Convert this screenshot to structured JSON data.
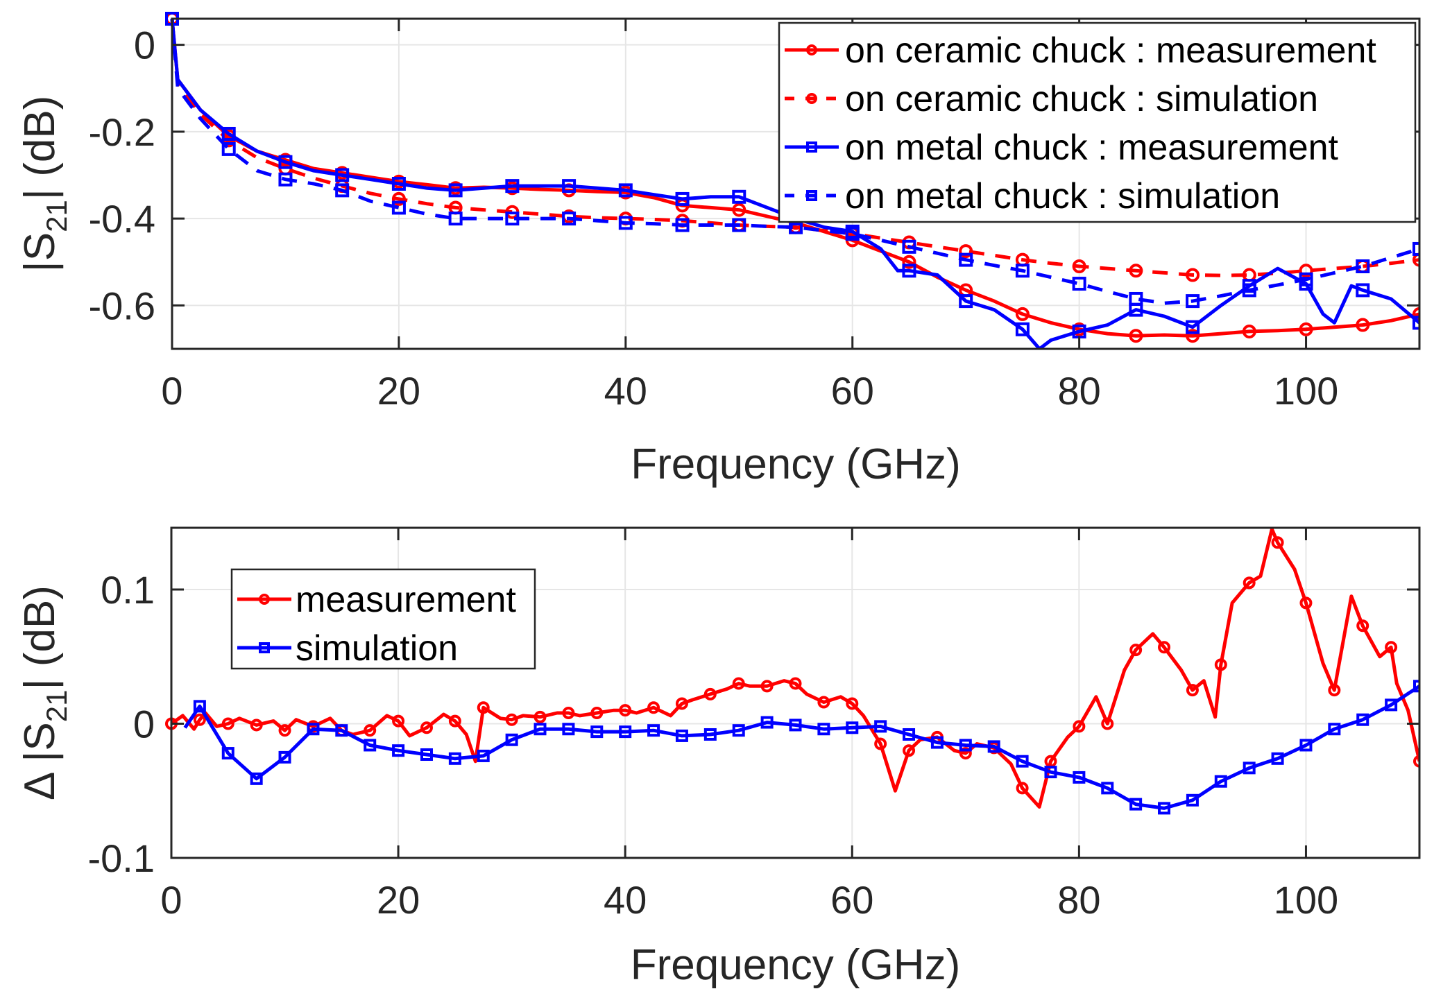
{
  "figure": {
    "description": "Two stacked MATLAB-style plots of S21 magnitude vs frequency"
  },
  "chart_data": [
    {
      "type": "line",
      "id": "top",
      "title": "",
      "xlabel": "Frequency (GHz)",
      "ylabel": "|S21| (dB)",
      "ylabel_parts": {
        "pre": "|S",
        "sub": "21",
        "post": "| (dB)"
      },
      "xlim": [
        0,
        110
      ],
      "ylim": [
        -0.7,
        0.06
      ],
      "xticks": [
        0,
        20,
        40,
        60,
        80,
        100
      ],
      "xtick_labels": [
        "0",
        "20",
        "40",
        "60",
        "80",
        "100"
      ],
      "yticks": [
        0,
        -0.2,
        -0.4,
        -0.6
      ],
      "ytick_labels": [
        "0",
        "-0.2",
        "-0.4",
        "-0.6"
      ],
      "grid": true,
      "legend_position": "top-right",
      "series": [
        {
          "name": "on ceramic chuck : measurement",
          "color": "#ff0000",
          "line_style": "solid",
          "marker": "circle",
          "marker_every_ghz": 5,
          "x": [
            0,
            0.5,
            2.5,
            5,
            7.5,
            10,
            12.5,
            15,
            17.5,
            20,
            22.5,
            25,
            27.5,
            30,
            32.5,
            35,
            37.5,
            40,
            42.5,
            45,
            47.5,
            50,
            52.5,
            55,
            57.5,
            60,
            62.5,
            65,
            67.5,
            70,
            72.5,
            75,
            77.5,
            80,
            82.5,
            85,
            87.5,
            90,
            92.5,
            95,
            97.5,
            100,
            102.5,
            105,
            107.5,
            110
          ],
          "y": [
            0.06,
            -0.08,
            -0.15,
            -0.21,
            -0.245,
            -0.265,
            -0.285,
            -0.295,
            -0.305,
            -0.315,
            -0.322,
            -0.33,
            -0.328,
            -0.33,
            -0.333,
            -0.335,
            -0.338,
            -0.34,
            -0.352,
            -0.37,
            -0.375,
            -0.38,
            -0.395,
            -0.41,
            -0.43,
            -0.45,
            -0.475,
            -0.5,
            -0.535,
            -0.565,
            -0.59,
            -0.62,
            -0.64,
            -0.655,
            -0.665,
            -0.67,
            -0.668,
            -0.67,
            -0.665,
            -0.66,
            -0.658,
            -0.655,
            -0.65,
            -0.645,
            -0.635,
            -0.62
          ]
        },
        {
          "name": "on ceramic chuck : simulation",
          "color": "#ff0000",
          "line_style": "dashed",
          "marker": "circle",
          "marker_every_ghz": 5,
          "x": [
            0,
            0.5,
            2.5,
            5,
            7.5,
            10,
            12.5,
            15,
            17.5,
            20,
            22.5,
            25,
            27.5,
            30,
            32.5,
            35,
            37.5,
            40,
            42.5,
            45,
            47.5,
            50,
            52.5,
            55,
            57.5,
            60,
            62.5,
            65,
            67.5,
            70,
            72.5,
            75,
            77.5,
            80,
            82.5,
            85,
            87.5,
            90,
            92.5,
            95,
            97.5,
            100,
            102.5,
            105,
            107.5,
            110
          ],
          "y": [
            0.06,
            -0.09,
            -0.16,
            -0.22,
            -0.26,
            -0.285,
            -0.307,
            -0.325,
            -0.342,
            -0.355,
            -0.366,
            -0.375,
            -0.38,
            -0.385,
            -0.39,
            -0.395,
            -0.398,
            -0.4,
            -0.402,
            -0.405,
            -0.41,
            -0.415,
            -0.418,
            -0.42,
            -0.428,
            -0.435,
            -0.445,
            -0.455,
            -0.465,
            -0.475,
            -0.485,
            -0.495,
            -0.503,
            -0.51,
            -0.515,
            -0.52,
            -0.525,
            -0.53,
            -0.531,
            -0.53,
            -0.526,
            -0.52,
            -0.515,
            -0.51,
            -0.503,
            -0.495
          ]
        },
        {
          "name": "on metal chuck : measurement",
          "color": "#0000ff",
          "line_style": "solid",
          "marker": "square",
          "marker_every_ghz": 5,
          "x": [
            0,
            0.5,
            2.5,
            5,
            7.5,
            10,
            12.5,
            15,
            17.5,
            20,
            22.5,
            25,
            27.5,
            30,
            32.5,
            35,
            37.5,
            40,
            42.5,
            45,
            47.5,
            50,
            52.5,
            55,
            57.5,
            60,
            62.5,
            64,
            65,
            67.5,
            70,
            72.5,
            75,
            76.5,
            77.5,
            80,
            82.5,
            85,
            87.5,
            90,
            92.5,
            95,
            97.5,
            100,
            101.5,
            102.5,
            104,
            105,
            107.5,
            110
          ],
          "y": [
            0.06,
            -0.08,
            -0.15,
            -0.205,
            -0.245,
            -0.27,
            -0.29,
            -0.3,
            -0.31,
            -0.32,
            -0.33,
            -0.335,
            -0.33,
            -0.325,
            -0.325,
            -0.325,
            -0.33,
            -0.335,
            -0.345,
            -0.355,
            -0.35,
            -0.35,
            -0.375,
            -0.4,
            -0.42,
            -0.43,
            -0.47,
            -0.52,
            -0.52,
            -0.53,
            -0.59,
            -0.61,
            -0.655,
            -0.7,
            -0.68,
            -0.66,
            -0.645,
            -0.61,
            -0.625,
            -0.65,
            -0.6,
            -0.555,
            -0.515,
            -0.55,
            -0.62,
            -0.64,
            -0.555,
            -0.565,
            -0.585,
            -0.64
          ]
        },
        {
          "name": "on metal chuck : simulation",
          "color": "#0000ff",
          "line_style": "dashed",
          "marker": "square",
          "marker_every_ghz": 5,
          "x": [
            0,
            0.5,
            2.5,
            5,
            7.5,
            10,
            12.5,
            15,
            17.5,
            20,
            22.5,
            25,
            27.5,
            30,
            32.5,
            35,
            37.5,
            40,
            42.5,
            45,
            47.5,
            50,
            52.5,
            55,
            57.5,
            60,
            62.5,
            65,
            67.5,
            70,
            72.5,
            75,
            77.5,
            80,
            82.5,
            85,
            87.5,
            90,
            92.5,
            95,
            97.5,
            100,
            102.5,
            105,
            107.5,
            110
          ],
          "y": [
            0.06,
            -0.1,
            -0.17,
            -0.24,
            -0.29,
            -0.31,
            -0.32,
            -0.335,
            -0.36,
            -0.375,
            -0.39,
            -0.4,
            -0.4,
            -0.4,
            -0.4,
            -0.4,
            -0.405,
            -0.41,
            -0.412,
            -0.415,
            -0.415,
            -0.415,
            -0.418,
            -0.42,
            -0.428,
            -0.435,
            -0.45,
            -0.465,
            -0.48,
            -0.495,
            -0.508,
            -0.52,
            -0.535,
            -0.55,
            -0.568,
            -0.585,
            -0.595,
            -0.59,
            -0.578,
            -0.565,
            -0.553,
            -0.54,
            -0.525,
            -0.51,
            -0.49,
            -0.47
          ]
        }
      ]
    },
    {
      "type": "line",
      "id": "bottom",
      "title": "",
      "xlabel": "Frequency (GHz)",
      "ylabel": "Δ |S21| (dB)",
      "ylabel_parts": {
        "pre": "Δ |S",
        "sub": "21",
        "post": "| (dB)"
      },
      "xlim": [
        0,
        110
      ],
      "ylim": [
        -0.1,
        0.146
      ],
      "xticks": [
        0,
        20,
        40,
        60,
        80,
        100
      ],
      "xtick_labels": [
        "0",
        "20",
        "40",
        "60",
        "80",
        "100"
      ],
      "yticks": [
        0.1,
        0,
        -0.1
      ],
      "ytick_labels": [
        "0.1",
        "0",
        "-0.1"
      ],
      "grid": true,
      "legend_position": "top-left",
      "series": [
        {
          "name": "measurement",
          "color": "#ff0000",
          "line_style": "solid",
          "marker": "circle",
          "marker_every_ghz": 2.5,
          "x": [
            0,
            1,
            2,
            2.5,
            3,
            4,
            5,
            6,
            7.5,
            9,
            10,
            11,
            12.5,
            14,
            15,
            16,
            17.5,
            19,
            20,
            21,
            22.5,
            24,
            25,
            26,
            26.8,
            27.5,
            29,
            30,
            31,
            32.5,
            34,
            35,
            36,
            37.5,
            39,
            40,
            41,
            42.5,
            44,
            45,
            46,
            47.5,
            49,
            50,
            51,
            52.5,
            54,
            55,
            56,
            57.5,
            59,
            60,
            61,
            62.5,
            63.8,
            65,
            66,
            67.5,
            69,
            70,
            71,
            72.5,
            74,
            75,
            76.5,
            77.5,
            79,
            80,
            81.5,
            82.5,
            84,
            85,
            86.5,
            87.5,
            89,
            90,
            91,
            92,
            92.5,
            93.5,
            95,
            96,
            97,
            97.5,
            99,
            100,
            101.5,
            102.5,
            104,
            105,
            106.5,
            107.5,
            108,
            109,
            110
          ],
          "y": [
            0,
            0.006,
            -0.004,
            0.003,
            0.008,
            -0.002,
            0,
            0.004,
            -0.001,
            0.002,
            -0.005,
            0.003,
            -0.002,
            0.004,
            -0.005,
            -0.008,
            -0.005,
            0.006,
            0.002,
            -0.009,
            -0.003,
            0.007,
            0.002,
            -0.008,
            -0.028,
            0.012,
            0.004,
            0.003,
            0.006,
            0.005,
            0.008,
            0.008,
            0.006,
            0.008,
            0.01,
            0.01,
            0.008,
            0.012,
            0.006,
            0.015,
            0.018,
            0.022,
            0.026,
            0.03,
            0.028,
            0.028,
            0.032,
            0.03,
            0.022,
            0.016,
            0.02,
            0.015,
            0.006,
            -0.015,
            -0.05,
            -0.02,
            -0.012,
            -0.01,
            -0.02,
            -0.022,
            -0.015,
            -0.018,
            -0.03,
            -0.048,
            -0.062,
            -0.028,
            -0.01,
            -0.002,
            0.02,
            0.0,
            0.04,
            0.055,
            0.067,
            0.057,
            0.04,
            0.025,
            0.032,
            0.005,
            0.044,
            0.09,
            0.105,
            0.11,
            0.145,
            0.135,
            0.115,
            0.09,
            0.045,
            0.025,
            0.095,
            0.073,
            0.05,
            0.057,
            0.03,
            0.01,
            -0.028
          ]
        },
        {
          "name": "simulation",
          "color": "#0000ff",
          "line_style": "solid",
          "marker": "square",
          "marker_every_ghz": 2.5,
          "x": [
            1.2,
            2.5,
            5,
            7.5,
            10,
            12.5,
            15,
            17.5,
            20,
            22.5,
            25,
            27.5,
            30,
            32.5,
            35,
            37.5,
            40,
            42.5,
            45,
            47.5,
            50,
            52.5,
            55,
            57.5,
            60,
            62.5,
            65,
            67.5,
            70,
            72.5,
            75,
            77.5,
            80,
            82.5,
            85,
            87.5,
            90,
            92.5,
            95,
            97.5,
            100,
            102.5,
            105,
            107.5,
            110
          ],
          "y": [
            -0.003,
            0.013,
            -0.022,
            -0.041,
            -0.025,
            -0.004,
            -0.005,
            -0.016,
            -0.02,
            -0.023,
            -0.026,
            -0.024,
            -0.012,
            -0.004,
            -0.004,
            -0.006,
            -0.006,
            -0.005,
            -0.009,
            -0.008,
            -0.005,
            0.001,
            -0.001,
            -0.004,
            -0.003,
            -0.002,
            -0.008,
            -0.014,
            -0.016,
            -0.017,
            -0.028,
            -0.036,
            -0.04,
            -0.048,
            -0.06,
            -0.063,
            -0.057,
            -0.043,
            -0.033,
            -0.026,
            -0.016,
            -0.004,
            0.003,
            0.014,
            0.028
          ]
        }
      ]
    }
  ]
}
